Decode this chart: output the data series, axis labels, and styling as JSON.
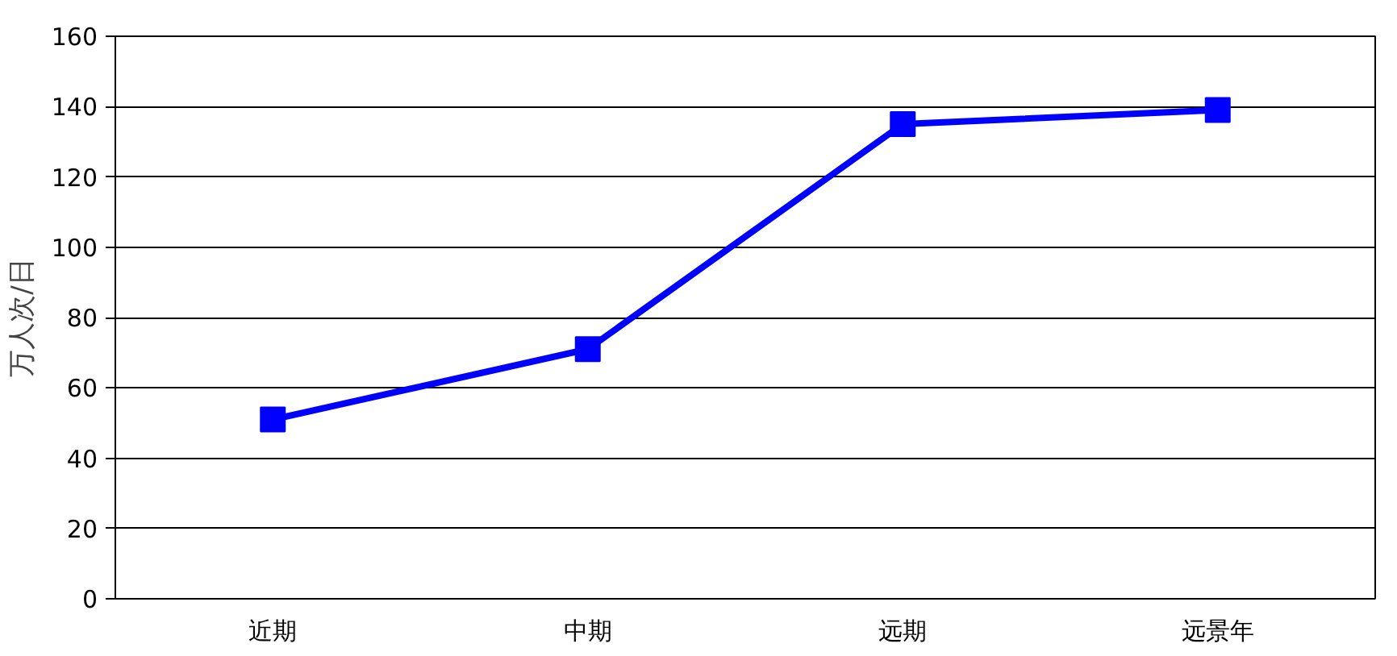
{
  "chart_data": {
    "type": "line",
    "ylabel": "万人次/日",
    "categories": [
      "近期",
      "中期",
      "远期",
      "远景年"
    ],
    "series": [
      {
        "color": "#0000ff",
        "values": [
          51,
          71,
          135,
          139
        ]
      }
    ],
    "ylim": [
      0,
      160
    ],
    "yticks": [
      0,
      20,
      40,
      60,
      80,
      100,
      120,
      140,
      160
    ],
    "grid": "y",
    "marker": "square",
    "line_style": "solid"
  }
}
